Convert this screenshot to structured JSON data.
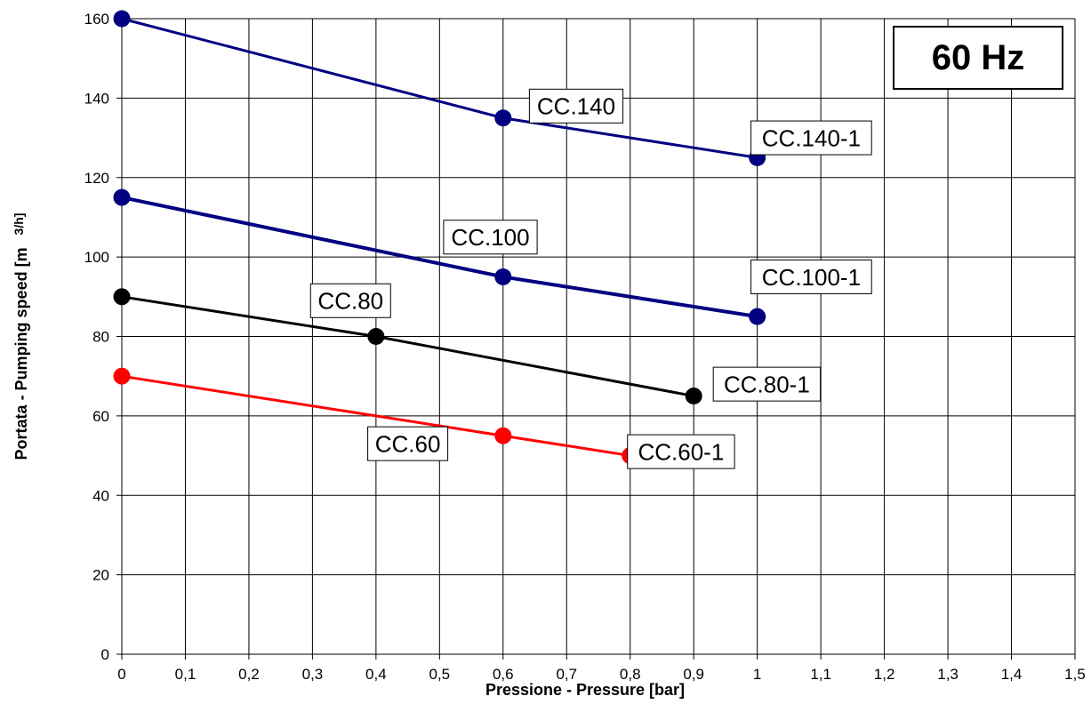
{
  "chart_data": {
    "type": "line",
    "title": "60 Hz",
    "xlabel": "Pressione - Pressure  [bar]",
    "ylabel": "Portata - Pumping speed [m",
    "ylabel_unit": "3/h]",
    "xlim": [
      0,
      1.5
    ],
    "ylim": [
      0,
      160
    ],
    "x_ticks": [
      0,
      0.1,
      0.2,
      0.3,
      0.4,
      0.5,
      0.6,
      0.7,
      0.8,
      0.9,
      1,
      1.1,
      1.2,
      1.3,
      1.4,
      1.5
    ],
    "x_tick_labels": [
      "0",
      "0,1",
      "0,2",
      "0,3",
      "0,4",
      "0,5",
      "0,6",
      "0,7",
      "0,8",
      "0,9",
      "1",
      "1,1",
      "1,2",
      "1,3",
      "1,4",
      "1,5"
    ],
    "y_ticks": [
      0,
      20,
      40,
      60,
      80,
      100,
      120,
      140,
      160
    ],
    "y_tick_labels": [
      "0",
      "20",
      "40",
      "60",
      "80",
      "100",
      "120",
      "140",
      "160"
    ],
    "grid": true,
    "legend": "none",
    "series": [
      {
        "color": "#000080",
        "points": [
          {
            "x": 0,
            "y": 160
          },
          {
            "x": 0.6,
            "y": 135
          },
          {
            "x": 1,
            "y": 125
          }
        ],
        "labels": [
          {
            "text": "CC.140",
            "x": 0.715,
            "y": 138
          },
          {
            "text": "CC.140-1",
            "x": 1.085,
            "y": 130
          }
        ]
      },
      {
        "color": "#000080",
        "points": [
          {
            "x": 0,
            "y": 115
          },
          {
            "x": 0.6,
            "y": 95
          },
          {
            "x": 1,
            "y": 85
          }
        ],
        "labels": [
          {
            "text": "CC.100",
            "x": 0.58,
            "y": 105
          },
          {
            "text": "CC.100-1",
            "x": 1.085,
            "y": 95
          }
        ]
      },
      {
        "color": "#000000",
        "points": [
          {
            "x": 0,
            "y": 90
          },
          {
            "x": 0.4,
            "y": 80
          },
          {
            "x": 0.9,
            "y": 65
          }
        ],
        "labels": [
          {
            "text": "CC.80",
            "x": 0.36,
            "y": 89
          },
          {
            "text": "CC.80-1",
            "x": 1.015,
            "y": 68
          }
        ]
      },
      {
        "color": "#ff0000",
        "points": [
          {
            "x": 0,
            "y": 70
          },
          {
            "x": 0.6,
            "y": 55
          },
          {
            "x": 0.8,
            "y": 50
          }
        ],
        "labels": [
          {
            "text": "CC.60",
            "x": 0.45,
            "y": 53
          },
          {
            "text": "CC.60-1",
            "x": 0.88,
            "y": 51
          }
        ]
      }
    ]
  }
}
